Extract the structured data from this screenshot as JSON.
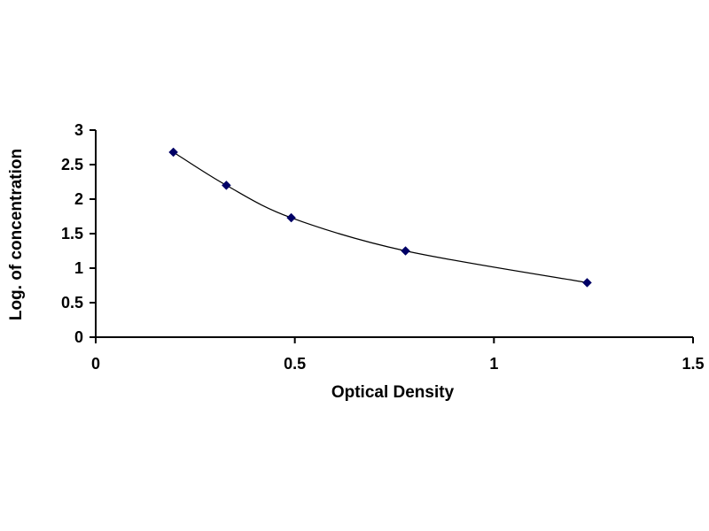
{
  "chart_data": {
    "type": "scatter",
    "title": "",
    "xlabel": "Optical Density",
    "ylabel": "Log. of concentration",
    "xlim": [
      0,
      1.5
    ],
    "ylim": [
      0,
      3
    ],
    "x_ticks": [
      "0",
      "0.5",
      "1",
      "1.5"
    ],
    "y_ticks": [
      "0",
      "0.5",
      "1",
      "1.5",
      "2",
      "2.5",
      "3"
    ],
    "grid": false,
    "legend": "none",
    "series": [
      {
        "x": [
          0.195,
          0.328,
          0.491,
          0.778,
          1.234
        ],
        "y": [
          2.68,
          2.2,
          1.73,
          1.25,
          0.79
        ],
        "marker": "diamond",
        "line": "smooth",
        "color": "#000066"
      }
    ]
  }
}
